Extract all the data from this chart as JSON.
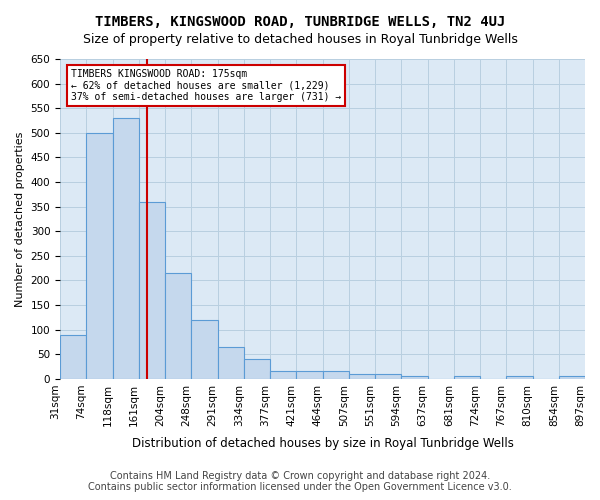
{
  "title": "TIMBERS, KINGSWOOD ROAD, TUNBRIDGE WELLS, TN2 4UJ",
  "subtitle": "Size of property relative to detached houses in Royal Tunbridge Wells",
  "xlabel": "Distribution of detached houses by size in Royal Tunbridge Wells",
  "ylabel": "Number of detached properties",
  "footer_line1": "Contains HM Land Registry data © Crown copyright and database right 2024.",
  "footer_line2": "Contains public sector information licensed under the Open Government Licence v3.0.",
  "bin_labels": [
    "31sqm",
    "74sqm",
    "118sqm",
    "161sqm",
    "204sqm",
    "248sqm",
    "291sqm",
    "334sqm",
    "377sqm",
    "421sqm",
    "464sqm",
    "507sqm",
    "551sqm",
    "594sqm",
    "637sqm",
    "681sqm",
    "724sqm",
    "767sqm",
    "810sqm",
    "854sqm",
    "897sqm"
  ],
  "values": [
    90,
    500,
    530,
    360,
    215,
    120,
    65,
    40,
    17,
    17,
    17,
    10,
    10,
    5,
    0,
    5,
    0,
    5,
    0,
    5
  ],
  "bar_color": "#c5d8ed",
  "bar_edge_color": "#5b9bd5",
  "vline_position": 2.826,
  "vline_color": "#cc0000",
  "annotation_text": "TIMBERS KINGSWOOD ROAD: 175sqm\n← 62% of detached houses are smaller (1,229)\n37% of semi-detached houses are larger (731) →",
  "annotation_box_color": "#ffffff",
  "annotation_box_edge_color": "#cc0000",
  "ylim": [
    0,
    650
  ],
  "yticks": [
    0,
    50,
    100,
    150,
    200,
    250,
    300,
    350,
    400,
    450,
    500,
    550,
    600,
    650
  ],
  "background_color": "#ffffff",
  "plot_bg_color": "#dce9f5",
  "grid_color": "#b8cfe0",
  "title_fontsize": 10,
  "subtitle_fontsize": 9,
  "axis_label_fontsize": 8,
  "tick_fontsize": 7.5,
  "footer_fontsize": 7
}
